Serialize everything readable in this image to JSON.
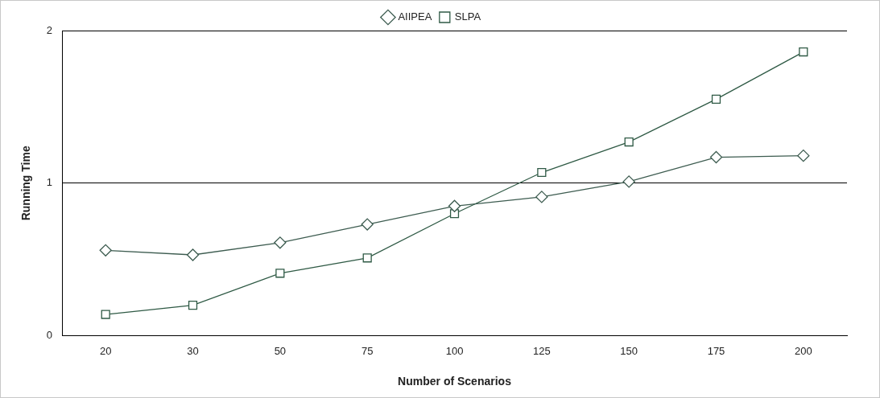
{
  "chart_data": {
    "type": "line",
    "x_label": "Number of Scenarios",
    "y_label": "Running Time",
    "categories": [
      "20",
      "30",
      "50",
      "75",
      "100",
      "125",
      "150",
      "175",
      "200"
    ],
    "series": [
      {
        "name": "AIIPEA",
        "color": "#3d5c50",
        "marker": "diamond",
        "line_style": "solid",
        "values": [
          0.56,
          0.53,
          0.61,
          0.73,
          0.85,
          0.91,
          1.01,
          1.17,
          1.18
        ]
      },
      {
        "name": "SLPA",
        "color": "#2f5a45",
        "marker": "square",
        "line_style": "solid",
        "values": [
          0.14,
          0.2,
          0.41,
          0.51,
          0.8,
          1.07,
          1.27,
          1.55,
          1.86
        ]
      }
    ],
    "ylim": [
      0,
      2
    ],
    "yticks": [
      0,
      1,
      2
    ],
    "grid": "y",
    "legend": "top"
  }
}
